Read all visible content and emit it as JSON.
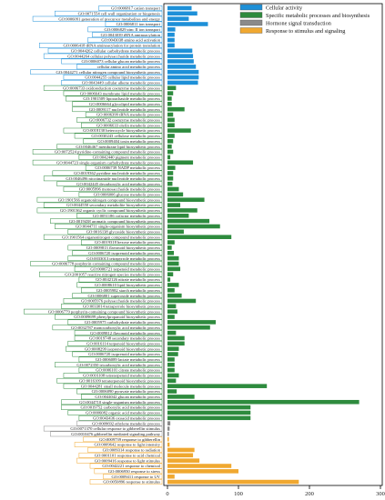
{
  "chart_data": {
    "type": "bar",
    "orientation": "horizontal",
    "xlim": [
      0,
      300
    ],
    "x_ticks": [
      0,
      100,
      200,
      300
    ],
    "legend_placement": "top-right",
    "series_colors": {
      "Cellular activity": "#1e90d8",
      "Specific metabolic processes and biosynthesis": "#2e8b3e",
      "Hormone signal transduction": "#8a8a8a",
      "Response to stimulus and signaling": "#f0a830"
    },
    "legend": [
      "Cellular activity",
      "Specific metabolic processes and biosynthesis",
      "Hormone signal transduction",
      "Response to stimulus and signaling"
    ],
    "categories": [
      "GO:0006817 cation transport",
      "GO:0071554 cell wall organization or biogenesis",
      "GO:0006091 generation of precursor metabolites and energy",
      "GO:0006811 ion transport",
      "GO:0006829 zinc II ion transport",
      "GO:0043039 tRNA aminoacylation",
      "GO:0043038 amino acid activation",
      "GO:0006418 tRNA aminoacylation for protein translation",
      "GO:0044262 cellular carbohydrate metabolic process",
      "GO:0044264 cellular polysaccharide metabolic process",
      "GO:0006073 cellular glucan metabolic process",
      "cellular amino acid metabolic process",
      "GO:0044271 cellular nitrogen compound biosynthetic process",
      "GO:0044255 cellular lipid metabolic process",
      "GO:0043449 cellular alkene metabolic process",
      "GO:0006733 oxidoreduction coenzyme metabolic process",
      "GO:0006643 membrane lipid metabolic process",
      "GO:1901509 lipooachaside metabolic process",
      "GO:0006664 glycolipid metabolic process",
      "GO:0009117 nucleotide metabolic process",
      "GO:0006399 tRNA metabolic process",
      "GO:0006732 coenzyme metabolic process",
      "GO:0006633 olefin metabolic process",
      "GO:0018130 heterocycle biosynthetic process",
      "GO:0030243 cellulose metabolic process",
      "GO:0009404 toxin metabolic process",
      "GO:0046467 membrane lipid biosynthetic process",
      "GO:0072524 pyridine-containing compound metabolic process",
      "GO:0042440 pigment metabolic process",
      "GO:0044723 single-organism carbohydrate metabolic process",
      "GO:0006739 NADP metabolic process",
      "GO:0019362 pyridine nucleotide metabolic process",
      "GO:0046496 nicotinamide nucleotide metabolic process",
      "GO:0042445 decarboxylic acid metabolic process",
      "GO:0005996 monosaccharide metabolic process",
      "GO:0006006 glucose metabolic process",
      "GO:1901566 organonitrogen compound biosynthetic process",
      "GO:0044550 secondary metabolite biosynthetic process",
      "GO:1901362 organic cyclic compound biosynthetic process",
      "GO:0051186 cofactor metabolic process",
      "GO:0019438 aromatic compound biosynthetic process",
      "GO:0044711 single-organism biosynthetic process",
      "GO:0016138 glycoside biosynthetic process",
      "GO:1901564 organonitrogen compound metabolic process",
      "GO:0019318 hexose metabolic process",
      "GO:0009813 flavonoid biosynthetic process",
      "GO:0006720 isoprenoid metabolic process",
      "GO:0033013 tetrapyrrole metabolic process",
      "GO:0006778 porphyrin-containing compound metabolic process",
      "GO:0006721 terpenoid metabolic process",
      "GO:2001057 reactive nitrogen species metabolic process",
      "GO:0042126 nitrate metabolic process",
      "GO:0008610 lipid biosynthetic process",
      "GO:0005982 starch metabolic process",
      "GO:0006801 superoxide metabolic process",
      "GO:0005976 polysaccharide metabolic process",
      "GO:0033014 tetrapyrrole biosynthetic process",
      "GO:0006779 porphyrin-containing compound biosynthetic process",
      "GO:0009699 phenylpropanoid biosynthetic process",
      "GO:0005975 carbohydrate metabolic process",
      "GO:0032787 monocarboxylic acid metabolic process",
      "GO:0009812 flavonoid metabolic process",
      "GO:0019748 secondary metabolic process",
      "GO:0016114 terpenoid biosynthetic process",
      "GO:0008299 isoprenoid biosynthetic process",
      "GO:0006720 isoprenoid metabolic process",
      "GO:0006089 lactate metabolic process",
      "GO:0072350 tricarboxylic acid metabolic process",
      "GO:0006101 citrate metabolic process",
      "GO:0016108 tetraterpenoid metabolic process",
      "GO:0016109 tetraterpenoid biosynthetic process",
      "GO:0044281 small molecule metabolic process",
      "GO:0006090 pyruvate metabolic process",
      "GO:0044042 glucan metabolic process",
      "GO:0044710 single-organism metabolic process",
      "GO:0019752 carboxylic acid metabolic process",
      "GO:0006082 organic acid metabolic process",
      "GO:0043436 oxoacid metabolic process",
      "GO:0009692 ethylene metabolic process",
      "GO:0071370 cellular response to gibberellin stimulus",
      "GO:0010476 gibberellin mediated signaling pathway",
      "GO:0009739 response to gibberellin",
      "GO:0009642 response to light intensity",
      "GO:0009314 response to radiation",
      "GO:0001101 response to acid chemical",
      "GO:0009416 response to light stimulus",
      "GO:0042221 response to chemical",
      "GO:0006950 response to stress",
      "GO:0009411 response to UV",
      "GO:0050896 response to stimulus"
    ],
    "groups": [
      0,
      0,
      0,
      0,
      0,
      0,
      0,
      0,
      0,
      0,
      0,
      0,
      0,
      0,
      0,
      1,
      1,
      1,
      1,
      1,
      1,
      1,
      1,
      1,
      1,
      1,
      1,
      1,
      1,
      1,
      1,
      1,
      1,
      1,
      1,
      1,
      1,
      1,
      1,
      1,
      1,
      1,
      1,
      1,
      1,
      1,
      1,
      1,
      1,
      1,
      1,
      1,
      1,
      1,
      1,
      1,
      1,
      1,
      1,
      1,
      1,
      1,
      1,
      1,
      1,
      1,
      1,
      1,
      1,
      1,
      1,
      1,
      1,
      1,
      1,
      1,
      1,
      1,
      2,
      2,
      2,
      3,
      3,
      3,
      3,
      3,
      3,
      3,
      3,
      3
    ],
    "values": [
      34,
      42,
      30,
      57,
      11,
      10,
      10,
      10,
      35,
      36,
      37,
      40,
      44,
      44,
      43,
      12,
      8,
      6,
      6,
      24,
      8,
      10,
      10,
      33,
      10,
      8,
      6,
      8,
      4,
      36,
      11,
      8,
      8,
      7,
      16,
      22,
      52,
      18,
      42,
      30,
      59,
      74,
      23,
      90,
      10,
      6,
      9,
      16,
      16,
      18,
      8,
      4,
      16,
      10,
      20,
      40,
      12,
      14,
      10,
      68,
      60,
      12,
      24,
      24,
      16,
      15,
      10,
      10,
      10,
      16,
      12,
      140,
      13,
      38,
      270,
      117,
      117,
      117,
      4,
      3,
      2,
      2,
      3,
      38,
      36,
      45,
      90,
      100,
      10,
      185
    ]
  }
}
